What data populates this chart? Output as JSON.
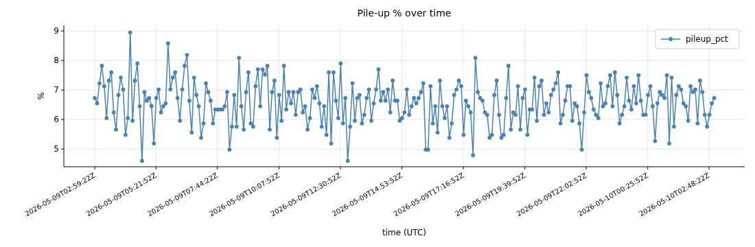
{
  "chart_data": {
    "type": "line",
    "title": "Pile-up % over time",
    "xlabel": "time (UTC)",
    "ylabel": "%",
    "x": [
      "2026-05-09T02:59:22",
      "2026-05-09T03:04:52",
      "2026-05-09T03:10:22",
      "2026-05-09T03:15:52",
      "2026-05-09T03:21:22",
      "2026-05-09T03:26:52",
      "2026-05-09T03:32:22",
      "2026-05-09T03:37:52",
      "2026-05-09T03:43:22",
      "2026-05-09T03:48:52",
      "2026-05-09T03:54:22",
      "2026-05-09T03:59:52",
      "2026-05-09T04:05:22",
      "2026-05-09T04:10:52",
      "2026-05-09T04:16:22",
      "2026-05-09T04:21:52",
      "2026-05-09T04:27:22",
      "2026-05-09T04:32:52",
      "2026-05-09T04:38:22",
      "2026-05-09T04:43:52",
      "2026-05-09T04:49:22",
      "2026-05-09T04:54:52",
      "2026-05-09T05:00:22",
      "2026-05-09T05:05:52",
      "2026-05-09T05:11:22",
      "2026-05-09T05:16:52",
      "2026-05-09T05:22:22",
      "2026-05-09T05:27:52",
      "2026-05-09T05:33:22",
      "2026-05-09T05:38:52",
      "2026-05-09T05:44:22",
      "2026-05-09T05:49:52",
      "2026-05-09T05:55:22",
      "2026-05-09T06:00:52",
      "2026-05-09T06:06:22",
      "2026-05-09T06:11:52",
      "2026-05-09T06:17:22",
      "2026-05-09T06:22:52",
      "2026-05-09T06:28:22",
      "2026-05-09T06:33:52",
      "2026-05-09T06:39:22",
      "2026-05-09T06:44:52",
      "2026-05-09T06:50:22",
      "2026-05-09T06:55:52",
      "2026-05-09T07:01:22",
      "2026-05-09T07:06:52",
      "2026-05-09T07:12:22",
      "2026-05-09T07:17:52",
      "2026-05-09T07:23:22",
      "2026-05-09T07:28:52",
      "2026-05-09T07:34:22",
      "2026-05-09T07:39:52",
      "2026-05-09T07:45:22",
      "2026-05-09T07:50:52",
      "2026-05-09T07:56:22",
      "2026-05-09T08:01:52",
      "2026-05-09T08:07:22",
      "2026-05-09T08:12:52",
      "2026-05-09T08:18:22",
      "2026-05-09T08:23:52",
      "2026-05-09T08:29:22",
      "2026-05-09T08:34:52",
      "2026-05-09T08:40:22",
      "2026-05-09T08:45:52",
      "2026-05-09T08:51:22",
      "2026-05-09T08:56:52",
      "2026-05-09T09:02:22",
      "2026-05-09T09:07:52",
      "2026-05-09T09:13:22",
      "2026-05-09T09:18:52",
      "2026-05-09T09:24:22",
      "2026-05-09T09:29:52",
      "2026-05-09T09:35:22",
      "2026-05-09T09:40:52",
      "2026-05-09T09:46:22",
      "2026-05-09T09:51:52",
      "2026-05-09T09:57:22",
      "2026-05-09T10:02:52",
      "2026-05-09T10:08:22",
      "2026-05-09T10:13:52",
      "2026-05-09T10:19:22",
      "2026-05-09T10:24:52",
      "2026-05-09T10:30:22",
      "2026-05-09T10:35:52",
      "2026-05-09T10:41:22",
      "2026-05-09T10:46:52",
      "2026-05-09T10:52:22",
      "2026-05-09T10:57:52",
      "2026-05-09T11:03:22",
      "2026-05-09T11:08:52",
      "2026-05-09T11:14:22",
      "2026-05-09T11:19:52",
      "2026-05-09T11:25:22",
      "2026-05-09T11:30:52",
      "2026-05-09T11:36:22",
      "2026-05-09T11:41:52",
      "2026-05-09T11:47:22",
      "2026-05-09T11:52:52",
      "2026-05-09T11:58:22",
      "2026-05-09T12:03:52",
      "2026-05-09T12:09:22",
      "2026-05-09T12:14:52",
      "2026-05-09T12:20:22",
      "2026-05-09T12:25:52",
      "2026-05-09T12:31:22",
      "2026-05-09T12:36:52",
      "2026-05-09T12:42:22",
      "2026-05-09T12:47:52",
      "2026-05-09T12:53:22",
      "2026-05-09T12:58:52",
      "2026-05-09T13:04:22",
      "2026-05-09T13:09:52",
      "2026-05-09T13:15:22",
      "2026-05-09T13:20:52",
      "2026-05-09T13:26:22",
      "2026-05-09T13:31:52",
      "2026-05-09T13:37:22",
      "2026-05-09T13:42:52",
      "2026-05-09T13:48:22",
      "2026-05-09T13:53:52",
      "2026-05-09T13:59:22",
      "2026-05-09T14:04:52",
      "2026-05-09T14:10:22",
      "2026-05-09T14:15:52",
      "2026-05-09T14:21:22",
      "2026-05-09T14:26:52",
      "2026-05-09T14:32:22",
      "2026-05-09T14:37:52",
      "2026-05-09T14:43:22",
      "2026-05-09T14:48:52",
      "2026-05-09T14:54:22",
      "2026-05-09T14:59:52",
      "2026-05-09T15:05:22",
      "2026-05-09T15:10:52",
      "2026-05-09T15:16:22",
      "2026-05-09T15:21:52",
      "2026-05-09T15:27:22",
      "2026-05-09T15:32:52",
      "2026-05-09T15:38:22",
      "2026-05-09T15:43:52",
      "2026-05-09T15:49:22",
      "2026-05-09T15:54:52",
      "2026-05-09T16:00:22",
      "2026-05-09T16:05:52",
      "2026-05-09T16:11:22",
      "2026-05-09T16:16:52",
      "2026-05-09T16:22:22",
      "2026-05-09T16:27:52",
      "2026-05-09T16:33:22",
      "2026-05-09T16:38:52",
      "2026-05-09T16:44:22",
      "2026-05-09T16:49:52",
      "2026-05-09T16:55:22",
      "2026-05-09T17:00:52",
      "2026-05-09T17:06:22",
      "2026-05-09T17:11:52",
      "2026-05-09T17:17:22",
      "2026-05-09T17:22:52",
      "2026-05-09T17:28:22",
      "2026-05-09T17:33:52",
      "2026-05-09T17:39:22",
      "2026-05-09T17:44:52",
      "2026-05-09T17:50:22",
      "2026-05-09T17:55:52",
      "2026-05-09T18:01:22",
      "2026-05-09T18:06:52",
      "2026-05-09T18:12:22",
      "2026-05-09T18:17:52",
      "2026-05-09T18:23:22",
      "2026-05-09T18:28:52",
      "2026-05-09T18:34:22",
      "2026-05-09T18:39:52",
      "2026-05-09T18:45:22",
      "2026-05-09T18:50:52",
      "2026-05-09T18:56:22",
      "2026-05-09T19:01:52",
      "2026-05-09T19:07:22",
      "2026-05-09T19:12:52",
      "2026-05-09T19:18:22",
      "2026-05-09T19:23:52",
      "2026-05-09T19:29:22",
      "2026-05-09T19:34:52",
      "2026-05-09T19:40:22",
      "2026-05-09T19:45:52",
      "2026-05-09T19:51:22",
      "2026-05-09T19:56:52",
      "2026-05-09T20:02:22",
      "2026-05-09T20:07:52",
      "2026-05-09T20:13:22",
      "2026-05-09T20:18:52",
      "2026-05-09T20:24:22",
      "2026-05-09T20:29:52",
      "2026-05-09T20:35:22",
      "2026-05-09T20:40:52",
      "2026-05-09T20:46:22",
      "2026-05-09T20:51:52",
      "2026-05-09T20:57:22",
      "2026-05-09T21:02:52",
      "2026-05-09T21:08:22",
      "2026-05-09T21:13:52",
      "2026-05-09T21:19:22",
      "2026-05-09T21:24:52",
      "2026-05-09T21:30:22",
      "2026-05-09T21:35:52",
      "2026-05-09T21:41:22",
      "2026-05-09T21:46:52",
      "2026-05-09T21:52:22",
      "2026-05-09T21:57:52",
      "2026-05-09T22:03:22",
      "2026-05-09T22:08:52",
      "2026-05-09T22:14:22",
      "2026-05-09T22:19:52",
      "2026-05-09T22:25:22",
      "2026-05-09T22:30:52",
      "2026-05-09T22:36:22",
      "2026-05-09T22:41:52",
      "2026-05-09T22:47:22",
      "2026-05-09T22:52:52",
      "2026-05-09T22:58:22",
      "2026-05-09T23:03:52",
      "2026-05-09T23:09:22",
      "2026-05-09T23:14:52",
      "2026-05-09T23:20:22",
      "2026-05-09T23:25:52",
      "2026-05-09T23:31:22",
      "2026-05-09T23:36:52",
      "2026-05-09T23:42:22",
      "2026-05-09T23:47:52",
      "2026-05-09T23:53:22",
      "2026-05-09T23:58:52",
      "2026-05-10T00:04:22",
      "2026-05-10T00:09:52",
      "2026-05-10T00:15:22",
      "2026-05-10T00:20:52",
      "2026-05-10T00:26:22",
      "2026-05-10T00:31:52",
      "2026-05-10T00:37:22",
      "2026-05-10T00:42:52",
      "2026-05-10T00:48:22",
      "2026-05-10T00:53:52",
      "2026-05-10T00:59:22",
      "2026-05-10T01:04:52",
      "2026-05-10T01:10:22",
      "2026-05-10T01:15:52",
      "2026-05-10T01:21:22",
      "2026-05-10T01:26:52",
      "2026-05-10T01:32:22",
      "2026-05-10T01:37:52",
      "2026-05-10T01:43:22",
      "2026-05-10T01:48:52",
      "2026-05-10T01:54:22",
      "2026-05-10T01:59:52",
      "2026-05-10T02:05:22",
      "2026-05-10T02:10:52",
      "2026-05-10T02:16:22",
      "2026-05-10T02:21:52",
      "2026-05-10T02:27:22",
      "2026-05-10T02:32:52",
      "2026-05-10T02:38:22",
      "2026-05-10T02:43:52",
      "2026-05-10T02:49:22",
      "2026-05-10T02:54:52",
      "2026-05-10T03:00:22"
    ],
    "series": [
      {
        "name": "pileup_pct",
        "color": "#4682b4",
        "values": [
          6.73,
          6.55,
          7.23,
          7.82,
          7.13,
          6.05,
          7.32,
          7.6,
          6.24,
          5.66,
          6.83,
          7.42,
          7.02,
          5.48,
          6.05,
          8.95,
          5.96,
          7.32,
          7.9,
          6.45,
          4.6,
          6.93,
          6.64,
          6.73,
          6.46,
          5.19,
          6.73,
          7.02,
          6.24,
          6.45,
          6.55,
          8.58,
          7.02,
          7.42,
          7.6,
          6.73,
          5.96,
          7.02,
          7.82,
          8.19,
          6.64,
          5.56,
          7.42,
          6.83,
          6.45,
          5.38,
          5.87,
          7.23,
          6.93,
          6.64,
          5.87,
          6.34,
          6.34,
          6.34,
          6.34,
          6.45,
          6.93,
          4.98,
          5.76,
          6.83,
          5.76,
          8.09,
          6.45,
          5.66,
          6.93,
          7.6,
          5.87,
          5.76,
          7.13,
          7.7,
          6.45,
          7.7,
          7.52,
          7.82,
          5.66,
          6.93,
          7.32,
          5.38,
          6.83,
          5.96,
          7.82,
          6.34,
          6.93,
          6.55,
          6.93,
          6.16,
          6.93,
          7.02,
          6.24,
          6.45,
          5.66,
          6.05,
          7.02,
          6.73,
          7.13,
          6.55,
          5.76,
          6.45,
          5.48,
          7.6,
          5.19,
          7.6,
          6.64,
          6.05,
          7.9,
          5.87,
          6.73,
          4.6,
          5.76,
          7.23,
          5.96,
          6.73,
          6.83,
          5.87,
          6.16,
          6.73,
          7.02,
          5.96,
          6.55,
          7.02,
          7.7,
          6.64,
          6.93,
          6.64,
          7.02,
          6.24,
          7.32,
          6.64,
          6.64,
          5.96,
          6.05,
          6.24,
          7.02,
          6.16,
          6.45,
          6.73,
          6.55,
          6.73,
          6.93,
          7.23,
          4.98,
          4.98,
          7.13,
          5.87,
          6.45,
          5.56,
          7.32,
          6.45,
          6.05,
          6.45,
          5.38,
          5.87,
          6.83,
          7.02,
          7.32,
          7.13,
          5.48,
          6.64,
          6.45,
          6.24,
          4.79,
          8.09,
          6.93,
          6.73,
          6.64,
          6.24,
          6.16,
          5.38,
          5.48,
          6.83,
          7.32,
          6.16,
          5.38,
          5.48,
          6.73,
          7.82,
          5.66,
          6.24,
          6.16,
          7.13,
          5.66,
          6.73,
          7.02,
          5.48,
          6.34,
          6.34,
          7.42,
          5.96,
          7.13,
          7.32,
          6.16,
          6.55,
          6.24,
          6.83,
          7.02,
          7.23,
          7.6,
          5.87,
          6.16,
          6.64,
          7.13,
          7.13,
          5.96,
          6.55,
          6.45,
          5.87,
          4.98,
          6.24,
          7.5,
          6.93,
          6.73,
          6.34,
          6.16,
          6.05,
          7.23,
          6.45,
          6.55,
          7.13,
          7.5,
          6.45,
          7.6,
          6.83,
          5.87,
          6.16,
          6.45,
          7.42,
          6.64,
          6.34,
          7.13,
          6.55,
          7.5,
          6.64,
          6.16,
          6.16,
          6.83,
          7.13,
          6.45,
          5.27,
          6.55,
          6.93,
          6.83,
          6.73,
          7.5,
          5.19,
          7.42,
          5.76,
          6.83,
          7.13,
          7.02,
          6.55,
          6.45,
          5.96,
          7.13,
          6.93,
          7.02,
          5.87,
          7.32,
          6.93,
          6.16,
          5.76,
          6.16,
          6.55,
          6.73
        ]
      }
    ],
    "xlim": [
      "2026-05-09T01:47:24",
      "2026-05-10T04:11:24"
    ],
    "xticks": [
      {
        "value": "2026-05-09T02:59:22",
        "label": "2026-05-09T02:59:22Z"
      },
      {
        "value": "2026-05-09T05:21:52",
        "label": "2026-05-09T05:21:52Z"
      },
      {
        "value": "2026-05-09T07:44:22",
        "label": "2026-05-09T07:44:22Z"
      },
      {
        "value": "2026-05-09T10:07:52",
        "label": "2026-05-09T10:07:52Z"
      },
      {
        "value": "2026-05-09T12:30:52",
        "label": "2026-05-09T12:30:52Z"
      },
      {
        "value": "2026-05-09T14:53:52",
        "label": "2026-05-09T14:53:52Z"
      },
      {
        "value": "2026-05-09T17:16:52",
        "label": "2026-05-09T17:16:52Z"
      },
      {
        "value": "2026-05-09T19:39:52",
        "label": "2026-05-09T19:39:52Z"
      },
      {
        "value": "2026-05-09T22:02:52",
        "label": "2026-05-09T22:02:52Z"
      },
      {
        "value": "2026-05-10T00:25:52",
        "label": "2026-05-10T00:25:52Z"
      },
      {
        "value": "2026-05-10T02:48:22",
        "label": "2026-05-10T02:48:22Z"
      }
    ],
    "ylim": [
      4.4,
      9.19
    ],
    "yticks": [
      5,
      6,
      7,
      8,
      9
    ],
    "grid": true,
    "legend": "top right",
    "marker": "circle",
    "line_style": "solid"
  }
}
